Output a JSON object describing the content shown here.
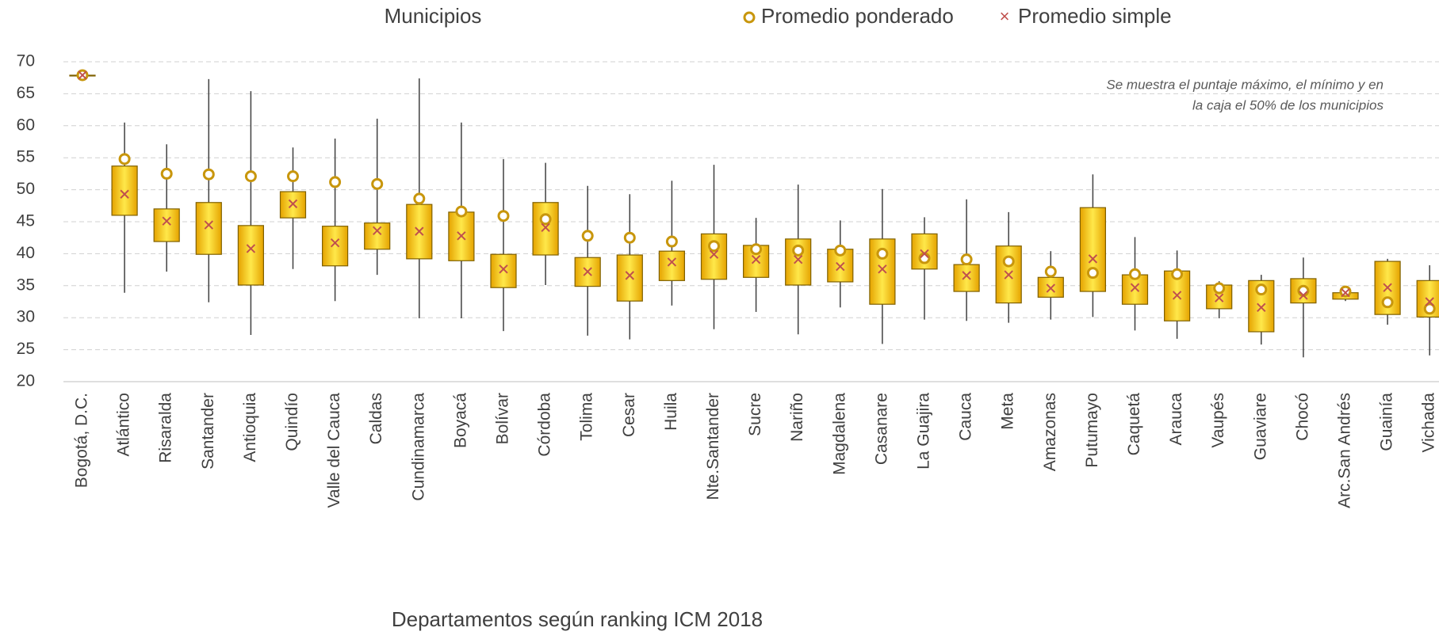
{
  "chart_data": {
    "type": "box",
    "xlabel": "Departamentos según ranking ICM 2018",
    "annotation": [
      "Se muestra el puntaje máximo, el mínimo y en",
      "la caja el 50% de los municipios"
    ],
    "categories": [
      "Bogotá, D.C.",
      "Atlántico",
      "Risaralda",
      "Santander",
      "Antioquia",
      "Quindío",
      "Valle del Cauca",
      "Caldas",
      "Cundinamarca",
      "Boyacá",
      "Bolívar",
      "Córdoba",
      "Tolima",
      "Cesar",
      "Huila",
      "Nte.Santander",
      "Sucre",
      "Nariño",
      "Magdalena",
      "Casanare",
      "La Guajira",
      "Cauca",
      "Meta",
      "Amazonas",
      "Putumayo",
      "Caquetá",
      "Arauca",
      "Vaupés",
      "Guaviare",
      "Chocó",
      "Arc.San Andrés",
      "Guainía",
      "Vichada"
    ],
    "box": {
      "name": "Municipios",
      "color": "#f5b800",
      "min": [
        67.9,
        33.9,
        37.2,
        32.4,
        27.3,
        37.6,
        32.6,
        36.7,
        29.9,
        29.9,
        27.9,
        35.1,
        27.2,
        26.6,
        31.9,
        28.2,
        30.9,
        27.4,
        31.6,
        25.9,
        29.7,
        29.5,
        29.2,
        29.7,
        30.1,
        28.0,
        26.7,
        29.9,
        25.8,
        23.8,
        32.6,
        28.9,
        24.1
      ],
      "q1": [
        67.9,
        46.0,
        41.9,
        39.9,
        35.1,
        45.6,
        38.1,
        40.7,
        39.2,
        38.9,
        34.7,
        39.8,
        34.9,
        32.6,
        35.8,
        36.0,
        36.3,
        35.1,
        35.6,
        32.1,
        37.6,
        34.1,
        32.3,
        33.2,
        34.1,
        32.1,
        29.5,
        31.4,
        27.8,
        32.3,
        32.9,
        30.5,
        30.1
      ],
      "q3": [
        67.9,
        53.7,
        47.0,
        48.0,
        44.4,
        49.7,
        44.3,
        44.8,
        47.7,
        46.5,
        39.9,
        48.0,
        39.4,
        39.8,
        40.4,
        43.1,
        41.3,
        42.3,
        40.7,
        42.3,
        43.1,
        38.3,
        41.2,
        36.3,
        47.2,
        36.7,
        37.3,
        35.1,
        35.8,
        36.1,
        33.9,
        38.8,
        35.8
      ],
      "max": [
        67.9,
        60.5,
        57.1,
        67.3,
        65.4,
        56.6,
        58.0,
        61.1,
        67.4,
        60.5,
        54.8,
        54.2,
        50.6,
        49.3,
        51.4,
        53.9,
        45.6,
        50.8,
        45.2,
        50.1,
        45.7,
        48.5,
        46.5,
        40.4,
        52.4,
        42.6,
        40.5,
        35.7,
        36.7,
        39.4,
        34.6,
        39.2,
        38.2
      ]
    },
    "series": [
      {
        "name": "Promedio ponderado",
        "color": "#c8960c",
        "values": [
          67.9,
          54.8,
          52.5,
          52.4,
          52.1,
          52.1,
          51.2,
          50.9,
          48.6,
          46.6,
          45.9,
          45.4,
          42.8,
          42.5,
          41.9,
          41.2,
          40.7,
          40.5,
          40.5,
          40.0,
          39.3,
          39.1,
          38.8,
          37.2,
          37.0,
          36.8,
          36.8,
          34.6,
          34.4,
          34.2,
          34.1,
          32.4,
          31.4
        ]
      },
      {
        "name": "Promedio simple",
        "color": "#c0504d",
        "values": [
          67.9,
          49.3,
          45.1,
          44.5,
          40.8,
          47.8,
          41.7,
          43.6,
          43.5,
          42.8,
          37.6,
          44.1,
          37.2,
          36.6,
          38.7,
          39.9,
          39.1,
          39.1,
          38.0,
          37.6,
          40.0,
          36.6,
          36.7,
          34.6,
          39.2,
          34.7,
          33.5,
          33.1,
          31.6,
          33.5,
          33.9,
          34.7,
          32.5
        ]
      }
    ],
    "ylim": [
      20,
      70
    ],
    "yticks": [
      20,
      25,
      30,
      35,
      40,
      45,
      50,
      55,
      60,
      65,
      70
    ],
    "grid": true
  }
}
